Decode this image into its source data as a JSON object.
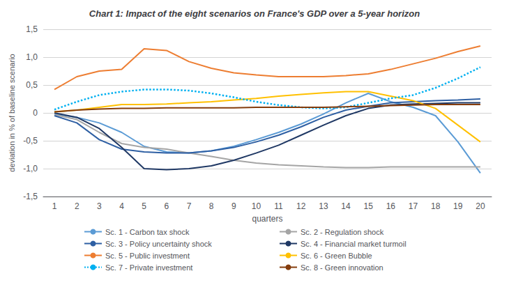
{
  "chart_data": {
    "type": "line",
    "title": "Chart 1: Impact of the eight scenarios on France's GDP over a 5-year horizon",
    "x_label": "quarters",
    "y_label": "deviation in % of baseline scenario",
    "x": [
      1,
      2,
      3,
      4,
      5,
      6,
      7,
      8,
      9,
      10,
      11,
      12,
      13,
      14,
      15,
      16,
      17,
      18,
      19,
      20
    ],
    "xlim": [
      0.5,
      20.5
    ],
    "xticks": [
      1,
      2,
      3,
      4,
      5,
      6,
      7,
      8,
      9,
      10,
      11,
      12,
      13,
      14,
      15,
      16,
      17,
      18,
      19,
      20
    ],
    "ylim": [
      -1.5,
      1.5
    ],
    "yticks": [
      {
        "value": -1.5,
        "label": "-1,5"
      },
      {
        "value": -1.0,
        "label": "-1,0"
      },
      {
        "value": -0.5,
        "label": "-0,5"
      },
      0,
      {
        "value": 0.5,
        "label": "0,5"
      },
      {
        "value": 1.0,
        "label": "1,0"
      },
      {
        "value": 1.5,
        "label": "1,5"
      }
    ],
    "grid": true,
    "legend": "bottom",
    "series": [
      {
        "name": "Sc. 1 - Carbon tax shock",
        "color": "#5B9BD5",
        "line_style": "solid",
        "values": [
          -0.02,
          -0.08,
          -0.18,
          -0.35,
          -0.6,
          -0.7,
          -0.72,
          -0.68,
          -0.6,
          -0.48,
          -0.35,
          -0.2,
          -0.02,
          0.18,
          0.35,
          0.2,
          0.1,
          -0.05,
          -0.52,
          -1.08
        ]
      },
      {
        "name": "Sc. 2 - Regulation shock",
        "color": "#A5A5A5",
        "line_style": "solid",
        "values": [
          -0.03,
          -0.12,
          -0.35,
          -0.55,
          -0.62,
          -0.65,
          -0.72,
          -0.78,
          -0.85,
          -0.9,
          -0.93,
          -0.95,
          -0.97,
          -0.98,
          -0.98,
          -0.97,
          -0.97,
          -0.97,
          -0.97,
          -0.97
        ]
      },
      {
        "name": "Sc. 3 - Policy uncertainty shock",
        "color": "#2E5FA3",
        "line_style": "solid",
        "values": [
          -0.05,
          -0.18,
          -0.48,
          -0.65,
          -0.7,
          -0.72,
          -0.72,
          -0.68,
          -0.62,
          -0.52,
          -0.4,
          -0.25,
          -0.08,
          0.05,
          0.12,
          0.18,
          0.2,
          0.22,
          0.23,
          0.25
        ]
      },
      {
        "name": "Sc. 4 - Financial market turmoil",
        "color": "#1F3864",
        "line_style": "solid",
        "values": [
          0.0,
          -0.08,
          -0.28,
          -0.62,
          -1.0,
          -1.02,
          -1.0,
          -0.95,
          -0.85,
          -0.72,
          -0.58,
          -0.4,
          -0.22,
          -0.05,
          0.08,
          0.14,
          0.16,
          0.17,
          0.18,
          0.18
        ]
      },
      {
        "name": "Sc. 5 - Public investment",
        "color": "#ED7D31",
        "line_style": "solid",
        "values": [
          0.42,
          0.65,
          0.75,
          0.78,
          1.15,
          1.12,
          0.92,
          0.8,
          0.72,
          0.68,
          0.65,
          0.65,
          0.65,
          0.67,
          0.7,
          0.78,
          0.88,
          0.98,
          1.1,
          1.2
        ]
      },
      {
        "name": "Sc. 6 - Green Bubble",
        "color": "#FFC000",
        "line_style": "solid",
        "values": [
          0.02,
          0.05,
          0.1,
          0.15,
          0.15,
          0.16,
          0.18,
          0.2,
          0.23,
          0.26,
          0.3,
          0.33,
          0.36,
          0.38,
          0.38,
          0.3,
          0.22,
          0.08,
          -0.22,
          -0.52
        ]
      },
      {
        "name": "Sc. 7 - Private investment",
        "color": "#00B0F0",
        "line_style": "dotted",
        "values": [
          0.06,
          0.2,
          0.32,
          0.38,
          0.42,
          0.42,
          0.4,
          0.35,
          0.28,
          0.2,
          0.14,
          0.1,
          0.08,
          0.1,
          0.18,
          0.26,
          0.32,
          0.45,
          0.62,
          0.82
        ]
      },
      {
        "name": "Sc. 8 - Green innovation",
        "color": "#843C0C",
        "line_style": "solid",
        "values": [
          0.02,
          0.05,
          0.07,
          0.08,
          0.08,
          0.09,
          0.09,
          0.09,
          0.09,
          0.1,
          0.1,
          0.1,
          0.1,
          0.11,
          0.12,
          0.13,
          0.14,
          0.15,
          0.15,
          0.15
        ]
      }
    ]
  }
}
